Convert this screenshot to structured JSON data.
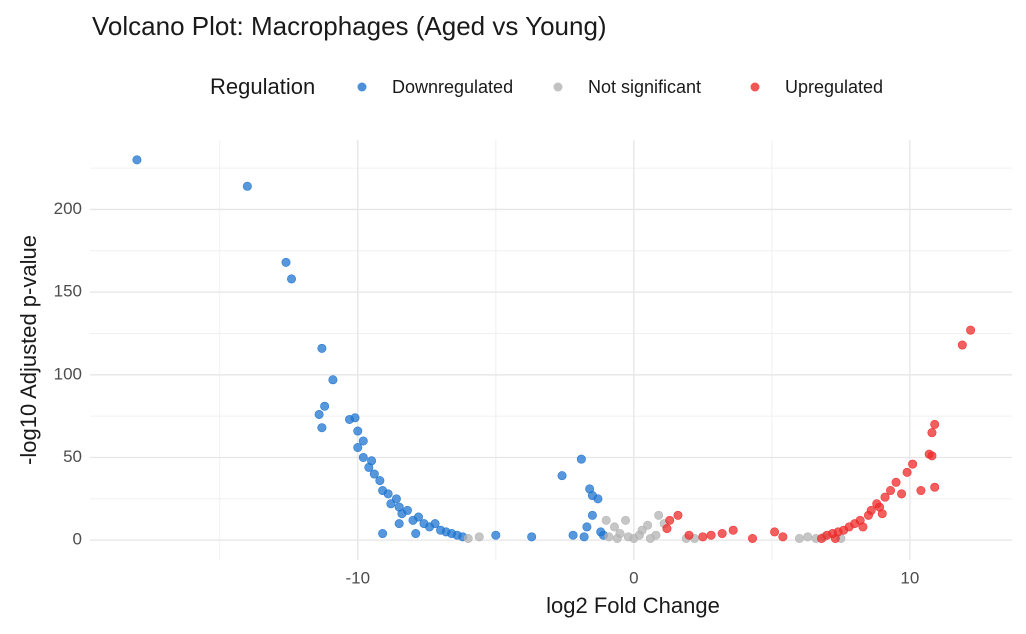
{
  "chart_data": {
    "type": "scatter",
    "title": "Volcano Plot: Macrophages (Aged vs Young)",
    "x_label": "log2 Fold Change",
    "y_label": "-log10 Adjusted p-value",
    "legend_title": "Regulation",
    "legend_position": "top",
    "grid": true,
    "xlim": [
      -19.7,
      13.7
    ],
    "ylim": [
      -12,
      242
    ],
    "xticks": [
      -10,
      0,
      10
    ],
    "yticks": [
      0,
      50,
      100,
      150,
      200
    ],
    "x_minor_grid": [
      -15,
      -5,
      5
    ],
    "y_minor_grid": [
      25,
      75,
      125,
      175,
      225
    ],
    "series": [
      {
        "name": "Downregulated",
        "color": "#1f74d0",
        "x": [
          -18,
          -14,
          -12.6,
          -12.4,
          -11.3,
          -10.9,
          -11.4,
          -11.3,
          -11.2,
          -10.3,
          -10.1,
          -10,
          -10,
          -9.8,
          -9.8,
          -9.6,
          -9.5,
          -9.4,
          -9.2,
          -9.1,
          -8.9,
          -8.8,
          -8.6,
          -8.5,
          -8.4,
          -8.2,
          -8,
          -7.8,
          -7.6,
          -7.4,
          -7.2,
          -7,
          -6.8,
          -6.6,
          -6.4,
          -6.2,
          -5,
          -3.7,
          -2.6,
          -1.9,
          -1.6,
          -1.5,
          -1.3,
          -1.5,
          -1.7,
          -1.2,
          -1.1,
          -1.8,
          -2.2,
          -9.1,
          -8.5,
          -7.9
        ],
        "y": [
          230,
          214,
          168,
          158,
          116,
          97,
          76,
          68,
          81,
          73,
          74,
          66,
          56,
          60,
          50,
          44,
          48,
          40,
          36,
          30,
          28,
          22,
          25,
          20,
          16,
          18,
          12,
          14,
          10,
          8,
          10,
          6,
          5,
          4,
          3,
          2,
          3,
          2,
          39,
          49,
          31,
          27,
          25,
          15,
          8,
          5,
          3,
          2,
          3,
          4,
          10,
          4
        ]
      },
      {
        "name": "Not significant",
        "color": "#b3b3b3",
        "x": [
          -0.9,
          -0.7,
          -0.5,
          -0.3,
          -0.2,
          0,
          0.3,
          0.5,
          0.8,
          0.9,
          1.1,
          -1.0,
          -0.6,
          0.2,
          1.9,
          2.2,
          6,
          6.3,
          6.6,
          6.9,
          7.5,
          -6,
          -5.6,
          0.6
        ],
        "y": [
          2,
          8,
          4,
          12,
          2,
          1,
          6,
          9,
          3,
          15,
          10,
          12,
          1,
          3,
          1,
          1,
          1,
          2,
          1,
          2,
          1,
          1,
          2,
          1
        ]
      },
      {
        "name": "Upregulated",
        "color": "#ee2a2a",
        "x": [
          1.3,
          1.6,
          1.2,
          2,
          2.5,
          2.8,
          3.2,
          3.6,
          4.3,
          5.1,
          5.4,
          6.8,
          7,
          7.2,
          7.4,
          7.6,
          7.8,
          8,
          8.2,
          8.3,
          8.5,
          8.6,
          8.8,
          8.9,
          9.1,
          9.3,
          9.5,
          9.7,
          9.9,
          10.1,
          10.4,
          10.7,
          10.8,
          10.8,
          10.9,
          10.9,
          11.9,
          12.2,
          7.3,
          9.0
        ],
        "y": [
          12,
          15,
          7,
          3,
          2,
          3,
          4,
          6,
          1,
          5,
          2,
          1,
          3,
          4,
          5,
          6,
          8,
          10,
          12,
          8,
          15,
          18,
          22,
          20,
          26,
          30,
          35,
          28,
          41,
          46,
          30,
          52,
          51,
          65,
          70,
          32,
          118,
          127,
          1,
          16
        ]
      }
    ]
  }
}
